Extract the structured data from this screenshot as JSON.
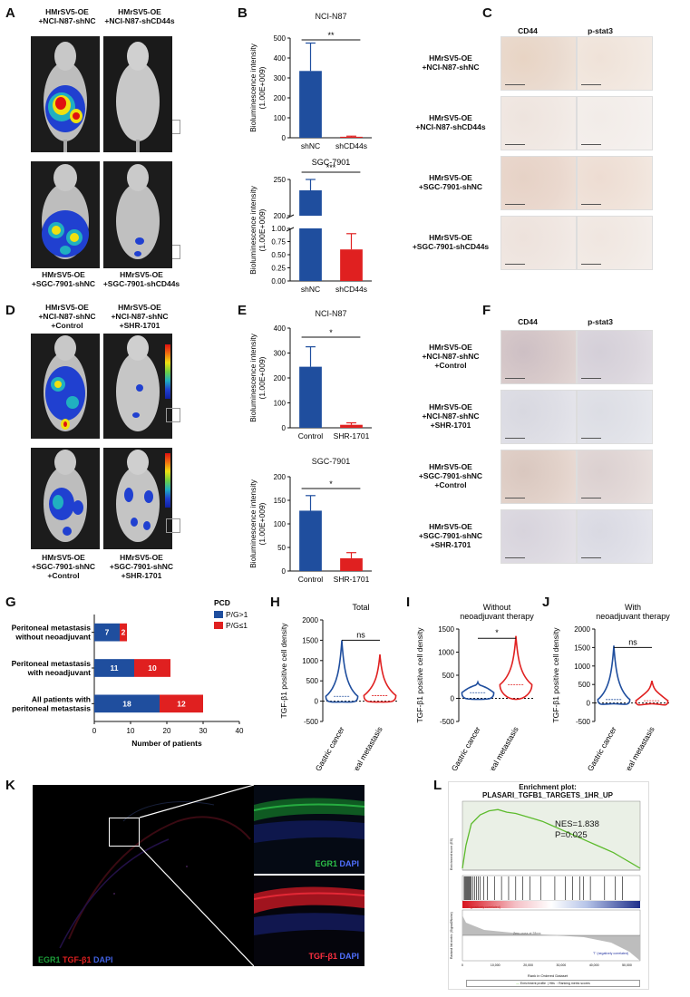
{
  "panels": {
    "A": "A",
    "B": "B",
    "C": "C",
    "D": "D",
    "E": "E",
    "F": "F",
    "G": "G",
    "H": "H",
    "I": "I",
    "J": "J",
    "K": "K",
    "L": "L"
  },
  "panelA": {
    "top_left": [
      "HMrSV5-OE",
      "+NCI-N87-shNC"
    ],
    "top_right": [
      "HMrSV5-OE",
      "+NCI-N87-shCD44s"
    ],
    "bottom_left": [
      "HMrSV5-OE",
      "+SGC-7901-shNC"
    ],
    "bottom_right": [
      "HMrSV5-OE",
      "+SGC-7901-shCD44s"
    ]
  },
  "panelC": {
    "col1": "CD44",
    "col2": "p-stat3",
    "rows": [
      [
        "HMrSV5-OE",
        "+NCI-N87-shNC"
      ],
      [
        "HMrSV5-OE",
        "+NCI-N87-shCD44s"
      ],
      [
        "HMrSV5-OE",
        "+SGC-7901-shNC"
      ],
      [
        "HMrSV5-OE",
        "+SGC-7901-shCD44s"
      ]
    ]
  },
  "panelD": {
    "top_left": [
      "HMrSV5-OE",
      "+NCI-N87-shNC",
      "+Control"
    ],
    "top_right": [
      "HMrSV5-OE",
      "+NCI-N87-shNC",
      "+SHR-1701"
    ],
    "bottom_left": [
      "HMrSV5-OE",
      "+SGC-7901-shNC",
      "+Control"
    ],
    "bottom_right": [
      "HMrSV5-OE",
      "+SGC-7901-shNC",
      "+SHR-1701"
    ]
  },
  "panelF": {
    "col1": "CD44",
    "col2": "p-stat3",
    "rows": [
      [
        "HMrSV5-OE",
        "+NCI-N87-shNC",
        "+Control"
      ],
      [
        "HMrSV5-OE",
        "+NCI-N87-shNC",
        "+SHR-1701"
      ],
      [
        "HMrSV5-OE",
        "+SGC-7901-shNC",
        "+Control"
      ],
      [
        "HMrSV5-OE",
        "+SGC-7901-shNC",
        "+SHR-1701"
      ]
    ]
  },
  "panelK": {
    "legend_left_1": "EGR1",
    "legend_left_2": "TGF-β1",
    "legend_left_3": "DAPI",
    "inset1_a": "EGR1",
    "inset1_b": "DAPI",
    "inset2_a": "TGF-β1",
    "inset2_b": "DAPI"
  },
  "panelL": {
    "title1": "Enrichment plot:",
    "title2": "PLASARI_TGFB1_TARGETS_1HR_UP",
    "nes": "NES=1.838",
    "p": "P=0.025",
    "ylabel_top": "Enrichment score (ES)",
    "ylabel_bottom": "Ranked list metric (Signal2Noise)",
    "xlabel": "Rank in Ordered Dataset",
    "pos_corr": "'P' (positively correlated)",
    "neg_corr": "'T' (negatively correlated)",
    "zero_cross": "Zero cross at 28xxx",
    "legend": [
      "Enrichment profile",
      "Hits",
      "Ranking metric scores"
    ],
    "xticks": [
      "0",
      "10,000",
      "20,000",
      "30,000",
      "40,000",
      "50,000"
    ]
  },
  "chart_data": [
    {
      "id": "B1",
      "type": "bar",
      "title": "NCI-N87",
      "categories": [
        "shNC",
        "shCD44s"
      ],
      "values": [
        335,
        5
      ],
      "errors": [
        140,
        3
      ],
      "colors": [
        "#1f4e9e",
        "#e02020"
      ],
      "ylabel": "Bioluminescence intensity",
      "ylabel2": "(1.00E+009)",
      "ylim": [
        0,
        500
      ],
      "yticks": [
        0,
        100,
        200,
        300,
        400,
        500
      ],
      "significance": "**"
    },
    {
      "id": "B2",
      "type": "bar",
      "title": "SGC-7901",
      "categories": [
        "shNC",
        "shCD44s"
      ],
      "values": [
        235,
        0.6
      ],
      "errors": [
        15,
        0.3
      ],
      "colors": [
        "#1f4e9e",
        "#e02020"
      ],
      "ylabel": "Bioluminescence intensity",
      "ylabel2": "(1.00E+009)",
      "broken_axis": {
        "upper": [
          200,
          250
        ],
        "lower": [
          0,
          1.0
        ]
      },
      "yticks_upper": [
        200,
        250
      ],
      "yticks_lower": [
        0.0,
        0.25,
        0.5,
        0.75,
        1.0
      ],
      "ytick_labels_upper": [
        "200",
        "250"
      ],
      "ytick_labels_lower": [
        "0.00",
        "0.25",
        "0.50",
        "0.75",
        "1.00"
      ],
      "significance": "***"
    },
    {
      "id": "E1",
      "type": "bar",
      "title": "NCI-N87",
      "categories": [
        "Control",
        "SHR-1701"
      ],
      "values": [
        245,
        12
      ],
      "errors": [
        80,
        8
      ],
      "colors": [
        "#1f4e9e",
        "#e02020"
      ],
      "ylabel": "Bioluminescence intensity",
      "ylabel2": "(1.00E+009)",
      "ylim": [
        0,
        400
      ],
      "yticks": [
        0,
        100,
        200,
        300,
        400
      ],
      "significance": "*"
    },
    {
      "id": "E2",
      "type": "bar",
      "title": "SGC-7901",
      "categories": [
        "Control",
        "SHR-1701"
      ],
      "values": [
        128,
        27
      ],
      "errors": [
        32,
        12
      ],
      "colors": [
        "#1f4e9e",
        "#e02020"
      ],
      "ylabel": "Bioluminescence intensity",
      "ylabel2": "(1.00E+009)",
      "ylim": [
        0,
        200
      ],
      "yticks": [
        0,
        50,
        100,
        150,
        200
      ],
      "significance": "*"
    },
    {
      "id": "G",
      "type": "bar",
      "orientation": "horizontal",
      "stacked": true,
      "categories": [
        "Peritoneal metastasis without neoadjuvant",
        "Peritoneal metastasis with neoadjuvant",
        "All patients with peritoneal metastasis"
      ],
      "category_lines": [
        [
          "Peritoneal metastasis",
          "without neoadjuvant"
        ],
        [
          "Peritoneal metastasis",
          "with neoadjuvant"
        ],
        [
          "All patients with",
          "peritoneal metastasis"
        ]
      ],
      "series": [
        {
          "name": "P/G>1",
          "values": [
            7,
            11,
            18
          ],
          "color": "#1f4e9e"
        },
        {
          "name": "P/G≤1",
          "values": [
            2,
            10,
            12
          ],
          "color": "#e02020"
        }
      ],
      "legend_title": "PCD",
      "xlabel": "Number of patients",
      "xlim": [
        0,
        40
      ],
      "xticks": [
        0,
        10,
        20,
        30,
        40
      ]
    },
    {
      "id": "H",
      "type": "violin",
      "title": "Total",
      "categories": [
        "Gastric cancer",
        "Peritoneal metastasis"
      ],
      "max": [
        1500,
        1150
      ],
      "colors": [
        "#1f4e9e",
        "#e02020"
      ],
      "ylabel": "TGF-β1 positive cell density",
      "ylim": [
        -500,
        2000
      ],
      "yticks": [
        -500,
        0,
        500,
        1000,
        1500,
        2000
      ],
      "significance": "ns"
    },
    {
      "id": "I",
      "type": "violin",
      "title": "Without neoadjuvant therapy",
      "title_lines": [
        "Without",
        "neoadjuvant therapy"
      ],
      "categories": [
        "Gastric cancer",
        "Peritoneal metastasis"
      ],
      "max": [
        350,
        1350
      ],
      "colors": [
        "#1f4e9e",
        "#e02020"
      ],
      "ylabel": "TGF-β1 positive cell density",
      "ylim": [
        -500,
        1500
      ],
      "yticks": [
        -500,
        0,
        500,
        1000,
        1500
      ],
      "significance": "*"
    },
    {
      "id": "J",
      "type": "violin",
      "title": "With neoadjuvant therapy",
      "title_lines": [
        "With",
        "neoadjuvant therapy"
      ],
      "categories": [
        "Gastric cancer",
        "Peritoneal metastasis"
      ],
      "max": [
        1550,
        600
      ],
      "colors": [
        "#1f4e9e",
        "#e02020"
      ],
      "ylabel": "TGF-β1 positive cell density",
      "ylim": [
        -500,
        2000
      ],
      "yticks": [
        -500,
        0,
        500,
        1000,
        1500,
        2000
      ],
      "significance": "ns"
    }
  ]
}
